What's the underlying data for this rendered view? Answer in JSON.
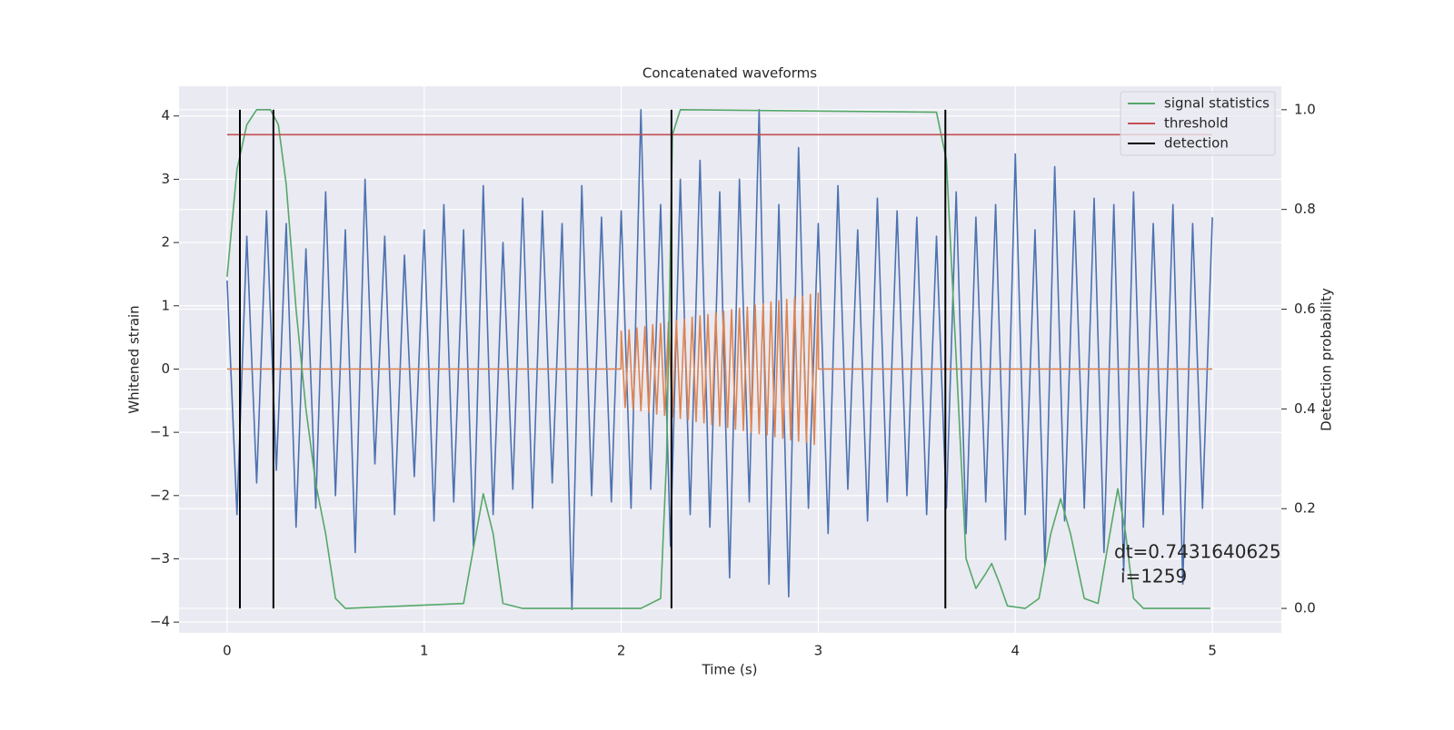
{
  "chart_data": {
    "type": "line",
    "title": "Concatenated waveforms",
    "xlabel": "Time (s)",
    "ylabel": "Whitened strain",
    "y2label": "Detection probability",
    "xlim": [
      -0.244,
      5.35
    ],
    "ylim": [
      -4.17,
      4.47
    ],
    "y2lim": [
      -0.049,
      1.047
    ],
    "xticks": [
      0,
      1,
      2,
      3,
      4,
      5
    ],
    "yticks": [
      {
        "value": -4,
        "label": "−4"
      },
      {
        "value": -3,
        "label": "−3"
      },
      {
        "value": -2,
        "label": "−2"
      },
      {
        "value": -1,
        "label": "−1"
      },
      0,
      1,
      2,
      3,
      4
    ],
    "y2ticks": [
      {
        "value": 0,
        "label": "0.0"
      },
      0.2,
      0.4,
      0.6,
      0.8,
      {
        "value": 1,
        "label": "1.0"
      }
    ],
    "grid": true,
    "legend": "upper right",
    "series": [
      {
        "color": "#4c72b0",
        "x": [
          0,
          0.05,
          0.1,
          0.15,
          0.2,
          0.25,
          0.3,
          0.35,
          0.4,
          0.45,
          0.5,
          0.55,
          0.6,
          0.65,
          0.7,
          0.75,
          0.8,
          0.85,
          0.9,
          0.95,
          1,
          1.05,
          1.1,
          1.15,
          1.2,
          1.25,
          1.3,
          1.35,
          1.4,
          1.45,
          1.5,
          1.55,
          1.6,
          1.65,
          1.7,
          1.75,
          1.8,
          1.85,
          1.9,
          1.95,
          2,
          2.05,
          2.1,
          2.15,
          2.2,
          2.25,
          2.3,
          2.35,
          2.4,
          2.45,
          2.5,
          2.55,
          2.6,
          2.65,
          2.7,
          2.75,
          2.8,
          2.85,
          2.9,
          2.95,
          3,
          3.05,
          3.1,
          3.15,
          3.2,
          3.25,
          3.3,
          3.35,
          3.4,
          3.45,
          3.5,
          3.55,
          3.6,
          3.65,
          3.7,
          3.75,
          3.8,
          3.85,
          3.9,
          3.95,
          4,
          4.05,
          4.1,
          4.15,
          4.2,
          4.25,
          4.3,
          4.35,
          4.4,
          4.45,
          4.5,
          4.55,
          4.6,
          4.65,
          4.7,
          4.75,
          4.8,
          4.85,
          4.9,
          4.95,
          5
        ],
        "values": [
          1.4,
          -2.3,
          2.1,
          -1.8,
          2.5,
          -1.6,
          2.3,
          -2.5,
          1.9,
          -2.2,
          2.8,
          -2.0,
          2.2,
          -2.9,
          3.0,
          -1.5,
          2.1,
          -2.3,
          1.8,
          -1.7,
          2.2,
          -2.4,
          2.6,
          -2.1,
          2.2,
          -2.8,
          2.9,
          -2.3,
          2.0,
          -1.9,
          2.7,
          -2.2,
          2.5,
          -1.8,
          2.3,
          -3.8,
          2.9,
          -2.0,
          2.4,
          -2.1,
          2.5,
          -2.2,
          4.1,
          -1.9,
          2.6,
          -2.8,
          3.0,
          -2.3,
          3.3,
          -2.5,
          2.8,
          -3.3,
          3.0,
          -2.1,
          4.1,
          -3.4,
          2.6,
          -3.6,
          3.5,
          -2.2,
          2.3,
          -2.6,
          2.9,
          -1.9,
          2.2,
          -2.4,
          2.7,
          -2.1,
          2.5,
          -2.0,
          2.4,
          -2.3,
          2.1,
          -2.2,
          2.8,
          -2.6,
          2.4,
          -2.1,
          2.6,
          -2.7,
          3.4,
          -2.3,
          2.2,
          -3.1,
          3.2,
          -2.4,
          2.5,
          -2.2,
          2.7,
          -2.9,
          2.6,
          -3.2,
          2.8,
          -2.5,
          2.3,
          -2.3,
          2.6,
          -3.4,
          2.3,
          -2.2,
          2.4
        ]
      },
      {
        "color": "#dd8452",
        "x": [
          0,
          1.999,
          2,
          2.02,
          2.04,
          2.06,
          2.08,
          2.1,
          2.12,
          2.14,
          2.16,
          2.18,
          2.2,
          2.22,
          2.24,
          2.26,
          2.28,
          2.3,
          2.32,
          2.34,
          2.36,
          2.38,
          2.4,
          2.42,
          2.44,
          2.46,
          2.48,
          2.5,
          2.52,
          2.54,
          2.56,
          2.58,
          2.6,
          2.62,
          2.64,
          2.66,
          2.68,
          2.7,
          2.72,
          2.74,
          2.76,
          2.78,
          2.8,
          2.82,
          2.84,
          2.86,
          2.88,
          2.9,
          2.92,
          2.94,
          2.96,
          2.98,
          3,
          3.001,
          5
        ],
        "values": [
          0,
          0,
          0.6,
          -0.61,
          0.62,
          -0.64,
          0.65,
          -0.66,
          0.67,
          -0.68,
          0.7,
          -0.71,
          0.72,
          -0.73,
          0.74,
          -0.76,
          0.77,
          -0.78,
          0.79,
          -0.8,
          0.82,
          -0.83,
          0.84,
          -0.85,
          0.86,
          -0.88,
          0.89,
          -0.9,
          0.91,
          -0.92,
          0.94,
          -0.95,
          0.96,
          -0.97,
          0.98,
          -1.0,
          1.01,
          -1.02,
          1.03,
          -1.04,
          1.06,
          -1.07,
          1.08,
          -1.09,
          1.1,
          -1.12,
          1.13,
          -1.14,
          1.15,
          -1.16,
          1.18,
          -1.19,
          1.2,
          0,
          0
        ]
      },
      {
        "name": "signal statistics",
        "color": "#55a868",
        "axis": "y2",
        "x": [
          0,
          0.05,
          0.1,
          0.15,
          0.22,
          0.26,
          0.3,
          0.35,
          0.4,
          0.45,
          0.5,
          0.55,
          0.6,
          1.2,
          1.25,
          1.3,
          1.35,
          1.4,
          1.5,
          2.1,
          2.2,
          2.23,
          2.26,
          2.3,
          3.6,
          3.65,
          3.7,
          3.75,
          3.8,
          3.85,
          3.88,
          3.92,
          3.96,
          4.05,
          4.12,
          4.18,
          4.23,
          4.28,
          4.35,
          4.42,
          4.48,
          4.52,
          4.56,
          4.6,
          4.65,
          4.99
        ],
        "values": [
          0.665,
          0.88,
          0.97,
          1.0,
          1.0,
          0.97,
          0.85,
          0.6,
          0.4,
          0.25,
          0.15,
          0.02,
          0.0,
          0.01,
          0.12,
          0.23,
          0.15,
          0.01,
          0.0,
          0.0,
          0.02,
          0.3,
          0.95,
          1.0,
          0.995,
          0.9,
          0.5,
          0.1,
          0.04,
          0.07,
          0.09,
          0.05,
          0.005,
          0.0,
          0.02,
          0.15,
          0.22,
          0.15,
          0.02,
          0.01,
          0.15,
          0.24,
          0.15,
          0.02,
          0.0,
          0.0
        ]
      },
      {
        "name": "threshold",
        "color": "#c44e52",
        "axis": "y2",
        "x": [
          0,
          5
        ],
        "values": [
          0.95,
          0.95
        ]
      }
    ],
    "vlines": {
      "name": "detection",
      "color": "#000000",
      "axis": "y2",
      "x": [
        0.065,
        0.235,
        2.255,
        3.645
      ],
      "ymin": 0,
      "ymax": 1
    },
    "annotations": [
      "dt=0.7431640625",
      "i=1259"
    ]
  }
}
